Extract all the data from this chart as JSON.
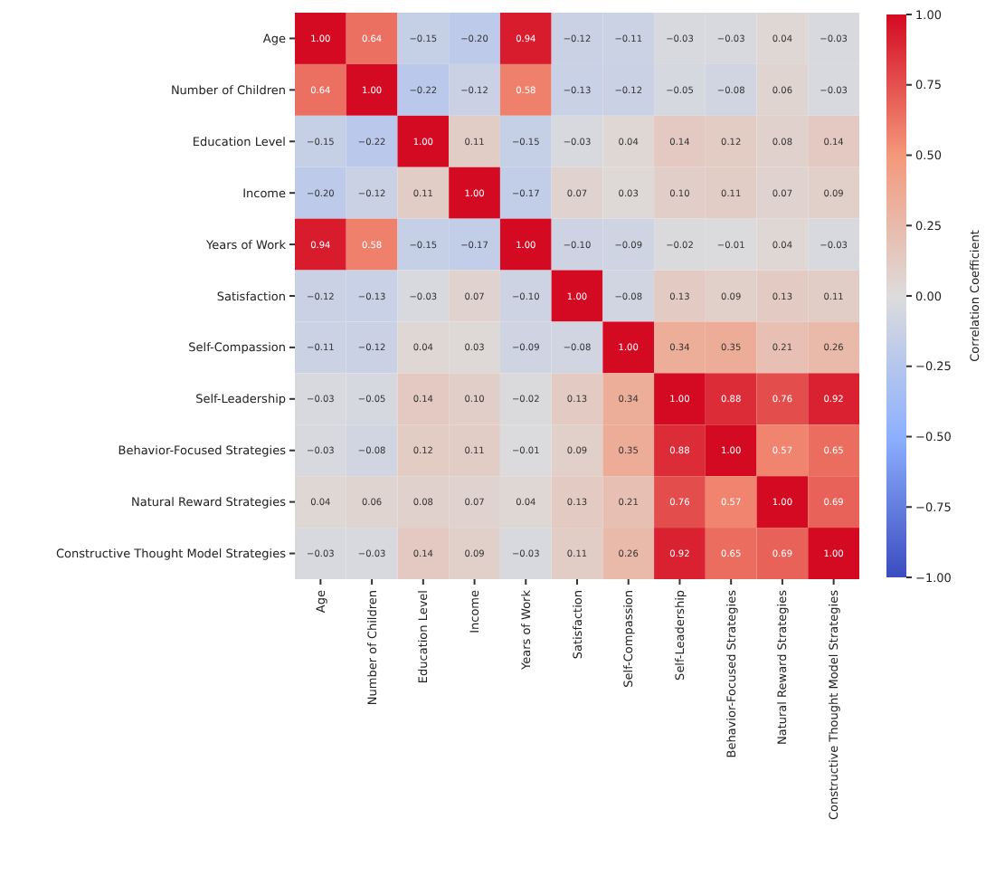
{
  "chart_data": {
    "type": "heatmap",
    "clabel": "Correlation Coefficient",
    "categories": [
      "Age",
      "Number of Children",
      "Education Level",
      "Income",
      "Years of Work",
      "Satisfaction",
      "Self-Compassion",
      "Self-Leadership",
      "Behavior-Focused Strategies",
      "Natural Reward Strategies",
      "Constructive Thought Model Strategies"
    ],
    "y_categories": [
      "Age",
      "Number of Children",
      "Education Level",
      "Income",
      "Years of Work",
      "Satisfaction",
      "Self-Compassion",
      "Self-Leadership",
      "Behavior-Focused Strategies",
      "Natural Reward Strategies",
      "Constructive Thought Model Strategies"
    ],
    "cells": [
      [
        1.0,
        0.64,
        -0.15,
        -0.2,
        0.94,
        -0.12,
        -0.11,
        -0.03,
        -0.03,
        0.04,
        -0.03
      ],
      [
        0.64,
        1.0,
        -0.22,
        -0.12,
        0.58,
        -0.13,
        -0.12,
        -0.05,
        -0.08,
        0.06,
        -0.03
      ],
      [
        -0.15,
        -0.22,
        1.0,
        0.11,
        -0.15,
        -0.03,
        0.04,
        0.14,
        0.12,
        0.08,
        0.14
      ],
      [
        -0.2,
        -0.12,
        0.11,
        1.0,
        -0.17,
        0.07,
        0.03,
        0.1,
        0.11,
        0.07,
        0.09
      ],
      [
        0.94,
        0.58,
        -0.15,
        -0.17,
        1.0,
        -0.1,
        -0.09,
        -0.02,
        -0.01,
        0.04,
        -0.03
      ],
      [
        -0.12,
        -0.13,
        -0.03,
        0.07,
        -0.1,
        1.0,
        -0.08,
        0.13,
        0.09,
        0.13,
        0.11
      ],
      [
        -0.11,
        -0.12,
        0.04,
        0.03,
        -0.09,
        -0.08,
        1.0,
        0.34,
        0.35,
        0.21,
        0.26
      ],
      [
        -0.03,
        -0.05,
        0.14,
        0.1,
        -0.02,
        0.13,
        0.34,
        1.0,
        0.88,
        0.76,
        0.92
      ],
      [
        -0.03,
        -0.08,
        0.12,
        0.11,
        -0.01,
        0.09,
        0.35,
        0.88,
        1.0,
        0.57,
        0.65
      ],
      [
        0.04,
        0.06,
        0.08,
        0.07,
        0.04,
        0.13,
        0.21,
        0.76,
        0.57,
        1.0,
        0.69
      ],
      [
        -0.03,
        -0.03,
        0.14,
        0.09,
        -0.03,
        0.11,
        0.26,
        0.92,
        0.65,
        0.69,
        1.0
      ]
    ],
    "cell_labels": [
      [
        "1.00",
        "0.64",
        "−0.15",
        "−0.20",
        "0.94",
        "−0.12",
        "−0.11",
        "−0.03",
        "−0.03",
        "0.04",
        "−0.03"
      ],
      [
        "0.64",
        "1.00",
        "−0.22",
        "−0.12",
        "0.58",
        "−0.13",
        "−0.12",
        "−0.05",
        "−0.08",
        "0.06",
        "−0.03"
      ],
      [
        "−0.15",
        "−0.22",
        "1.00",
        "0.11",
        "−0.15",
        "−0.03",
        "0.04",
        "0.14",
        "0.12",
        "0.08",
        "0.14"
      ],
      [
        "−0.20",
        "−0.12",
        "0.11",
        "1.00",
        "−0.17",
        "0.07",
        "0.03",
        "0.10",
        "0.11",
        "0.07",
        "0.09"
      ],
      [
        "0.94",
        "0.58",
        "−0.15",
        "−0.17",
        "1.00",
        "−0.10",
        "−0.09",
        "−0.02",
        "−0.01",
        "0.04",
        "−0.03"
      ],
      [
        "−0.12",
        "−0.13",
        "−0.03",
        "0.07",
        "−0.10",
        "1.00",
        "−0.08",
        "0.13",
        "0.09",
        "0.13",
        "0.11"
      ],
      [
        "−0.11",
        "−0.12",
        "0.04",
        "0.03",
        "−0.09",
        "−0.08",
        "1.00",
        "0.34",
        "0.35",
        "0.21",
        "0.26"
      ],
      [
        "−0.03",
        "−0.05",
        "0.14",
        "0.10",
        "−0.02",
        "0.13",
        "0.34",
        "1.00",
        "0.88",
        "0.76",
        "0.92"
      ],
      [
        "−0.03",
        "−0.08",
        "0.12",
        "0.11",
        "−0.01",
        "0.09",
        "0.35",
        "0.88",
        "1.00",
        "0.57",
        "0.65"
      ],
      [
        "0.04",
        "0.06",
        "0.08",
        "0.07",
        "0.04",
        "0.13",
        "0.21",
        "0.76",
        "0.57",
        "1.00",
        "0.69"
      ],
      [
        "−0.03",
        "−0.03",
        "0.14",
        "0.09",
        "−0.03",
        "0.11",
        "0.26",
        "0.92",
        "0.65",
        "0.69",
        "1.00"
      ]
    ],
    "clim": [
      -1,
      1
    ],
    "cticks": [
      {
        "value": -1,
        "label": "−1.00"
      },
      {
        "value": -0.75,
        "label": "−0.75"
      },
      {
        "value": -0.5,
        "label": "−0.50"
      },
      {
        "value": -0.25,
        "label": "−0.25"
      },
      {
        "value": 0,
        "label": "0.00"
      },
      {
        "value": 0.25,
        "label": "0.25"
      },
      {
        "value": 0.5,
        "label": "0.50"
      },
      {
        "value": 0.75,
        "label": "0.75"
      },
      {
        "value": 1,
        "label": "1.00"
      }
    ]
  }
}
